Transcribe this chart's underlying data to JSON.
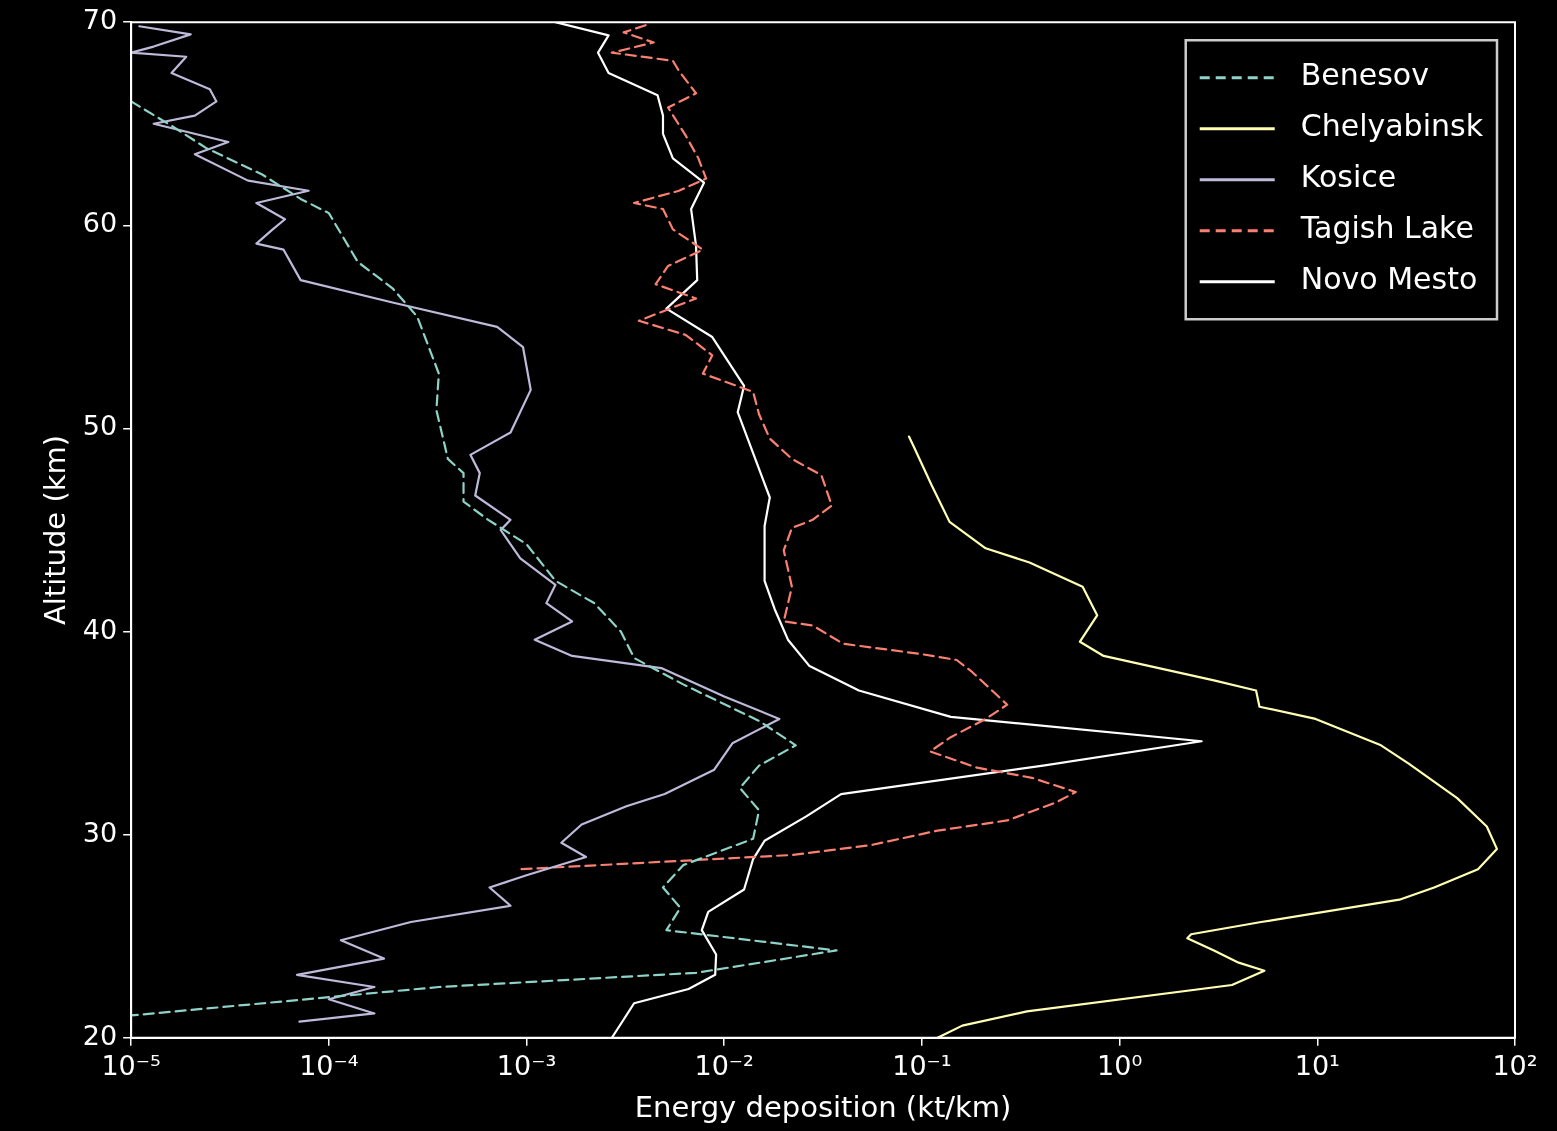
{
  "chart_data": {
    "type": "line",
    "xlabel": "Energy deposition (kt/km)",
    "ylabel": "Altitude (km)",
    "log": "x",
    "grid": false,
    "legend": "top right",
    "marker": "none",
    "xlim": [
      1e-05,
      100
    ],
    "xticks": [
      {
        "value": 1e-05,
        "label": "10⁻⁵"
      },
      {
        "value": 0.0001,
        "label": "10⁻⁴"
      },
      {
        "value": 0.001,
        "label": "10⁻³"
      },
      {
        "value": 0.01,
        "label": "10⁻²"
      },
      {
        "value": 0.1,
        "label": "10⁻¹"
      },
      {
        "value": 1,
        "label": "10⁰"
      },
      {
        "value": 10,
        "label": "10¹"
      },
      {
        "value": 100,
        "label": "10²"
      }
    ],
    "ylim": [
      20,
      70
    ],
    "yticks": [
      20,
      30,
      40,
      50,
      60,
      70
    ],
    "series": [
      {
        "name": "Benesov",
        "color": "#8dd3c7",
        "line_style": "dashed",
        "x": [
          1e-05,
          1.6e-05,
          2.4e-05,
          4.6e-05,
          7.2e-05,
          0.0001,
          0.00014,
          0.00021,
          0.00028,
          0.00036,
          0.00035,
          0.0004,
          0.00048,
          0.00048,
          0.00064,
          0.001,
          0.0014,
          0.0022,
          0.003,
          0.0035,
          0.0062,
          0.015,
          0.023,
          0.015,
          0.012,
          0.015,
          0.014,
          0.0062,
          0.0049,
          0.006,
          0.0051,
          0.037,
          0.0072,
          0.00036,
          1e-05
        ],
        "values": [
          66.1,
          64.9,
          63.8,
          62.5,
          61.3,
          60.6,
          58.2,
          56.9,
          55.5,
          52.7,
          50.9,
          48.5,
          47.8,
          46.4,
          45.5,
          44.3,
          42.5,
          41.4,
          40.0,
          38.7,
          37.4,
          35.6,
          34.4,
          33.4,
          32.3,
          31.2,
          29.8,
          28.5,
          27.4,
          26.4,
          25.3,
          24.3,
          23.2,
          22.5,
          21.1
        ]
      },
      {
        "name": "Chelyabinsk",
        "color": "#ffffb3",
        "line_style": "solid",
        "x": [
          0.086,
          0.091,
          0.112,
          0.138,
          0.21,
          0.35,
          0.65,
          0.77,
          0.63,
          0.83,
          3.0,
          4.9,
          5.1,
          9.8,
          21,
          29,
          51,
          72,
          81,
          65,
          39,
          26,
          5.2,
          2.3,
          2.2,
          3.0,
          4.0,
          5.4,
          3.7,
          0.34,
          0.16,
          0.12
        ],
        "values": [
          49.6,
          49.1,
          47.2,
          45.4,
          44.1,
          43.4,
          42.2,
          40.8,
          39.5,
          38.8,
          37.6,
          37.1,
          36.3,
          35.7,
          34.4,
          33.5,
          31.8,
          30.4,
          29.3,
          28.3,
          27.4,
          26.8,
          25.7,
          25.1,
          24.9,
          24.3,
          23.7,
          23.3,
          22.6,
          21.3,
          20.6,
          20.0
        ]
      },
      {
        "name": "Kosice",
        "color": "#bebada",
        "line_style": "solid",
        "x": [
          1.1e-05,
          2e-05,
          1.3e-05,
          1e-05,
          1.9e-05,
          1.6e-05,
          2.5e-05,
          2.7e-05,
          2.1e-05,
          1.3e-05,
          3.1e-05,
          2.1e-05,
          3.9e-05,
          7.9e-05,
          4.3e-05,
          6e-05,
          5.2e-05,
          4.3e-05,
          5.9e-05,
          7.2e-05,
          0.00021,
          0.00071,
          0.00096,
          0.00105,
          0.00083,
          0.00052,
          0.00058,
          0.00055,
          0.00083,
          0.00074,
          0.00093,
          0.0014,
          0.00126,
          0.0017,
          0.0011,
          0.0017,
          0.0048,
          0.01,
          0.019,
          0.011,
          0.0089,
          0.005,
          0.0032,
          0.0019,
          0.0015,
          0.002,
          0.001,
          0.00065,
          0.00083,
          0.00026,
          0.000115,
          0.00019,
          6.9e-05,
          0.00017,
          0.0001,
          0.00017,
          7.1e-05
        ],
        "values": [
          69.8,
          69.4,
          68.8,
          68.5,
          68.3,
          67.5,
          66.7,
          66.1,
          65.4,
          65.0,
          64.1,
          63.5,
          62.2,
          61.7,
          61.1,
          60.3,
          59.8,
          59.1,
          58.8,
          57.3,
          56.2,
          55.0,
          54.0,
          51.9,
          49.8,
          48.7,
          47.8,
          46.7,
          45.5,
          45.0,
          43.6,
          42.3,
          41.4,
          40.5,
          39.6,
          38.8,
          38.2,
          36.8,
          35.7,
          34.5,
          33.2,
          32.0,
          31.4,
          30.5,
          29.6,
          28.9,
          28.0,
          27.4,
          26.5,
          25.7,
          24.8,
          23.9,
          23.1,
          22.5,
          21.9,
          21.2,
          20.8
        ]
      },
      {
        "name": "Tagish Lake",
        "color": "#fb8072",
        "line_style": "dashed",
        "x": [
          0.004,
          0.0031,
          0.0044,
          0.0027,
          0.0055,
          0.0059,
          0.0072,
          0.0052,
          0.0064,
          0.0074,
          0.0081,
          0.0059,
          0.0035,
          0.0049,
          0.0055,
          0.0078,
          0.0052,
          0.0045,
          0.0072,
          0.0037,
          0.0064,
          0.0087,
          0.0078,
          0.014,
          0.015,
          0.017,
          0.022,
          0.031,
          0.035,
          0.028,
          0.022,
          0.02,
          0.022,
          0.02,
          0.028,
          0.04,
          0.098,
          0.15,
          0.18,
          0.27,
          0.21,
          0.14,
          0.11,
          0.19,
          0.36,
          0.6,
          0.48,
          0.27,
          0.12,
          0.056,
          0.022,
          0.00094
        ],
        "values": [
          69.85,
          69.5,
          69.0,
          68.5,
          68.1,
          67.6,
          66.5,
          65.8,
          64.4,
          63.3,
          62.3,
          61.7,
          61.1,
          60.8,
          59.8,
          58.8,
          58.0,
          57.1,
          56.4,
          55.3,
          54.6,
          53.6,
          52.7,
          51.8,
          50.7,
          49.5,
          48.5,
          47.7,
          46.2,
          45.5,
          45.1,
          44.0,
          42.2,
          40.5,
          40.3,
          39.4,
          38.9,
          38.6,
          38.0,
          36.4,
          35.7,
          34.8,
          34.1,
          33.3,
          32.8,
          32.1,
          31.6,
          30.7,
          30.2,
          29.5,
          29.0,
          28.3
        ]
      },
      {
        "name": "Novo Mesto",
        "color": "#ffffff",
        "line_style": "solid",
        "x": [
          0.0014,
          0.0026,
          0.0023,
          0.0026,
          0.0046,
          0.0049,
          0.0049,
          0.0055,
          0.0079,
          0.0068,
          0.0072,
          0.0073,
          0.0051,
          0.0087,
          0.0126,
          0.0117,
          0.017,
          0.016,
          0.016,
          0.018,
          0.021,
          0.027,
          0.048,
          0.14,
          2.6,
          0.41,
          0.039,
          0.026,
          0.016,
          0.014,
          0.0126,
          0.0083,
          0.0077,
          0.0091,
          0.009,
          0.0066,
          0.0035,
          0.0031,
          0.0027
        ],
        "values": [
          70,
          69.35,
          68.5,
          67.5,
          66.4,
          65.4,
          64.5,
          63.3,
          62.1,
          60.8,
          59.0,
          57.3,
          55.9,
          54.5,
          52.1,
          50.8,
          46.6,
          45.2,
          42.5,
          41.1,
          39.6,
          38.3,
          37.1,
          35.8,
          34.6,
          33.4,
          32.0,
          30.9,
          29.7,
          28.8,
          27.3,
          26.2,
          25.3,
          24.1,
          23.1,
          22.4,
          21.7,
          20.9,
          20.0
        ]
      }
    ]
  }
}
